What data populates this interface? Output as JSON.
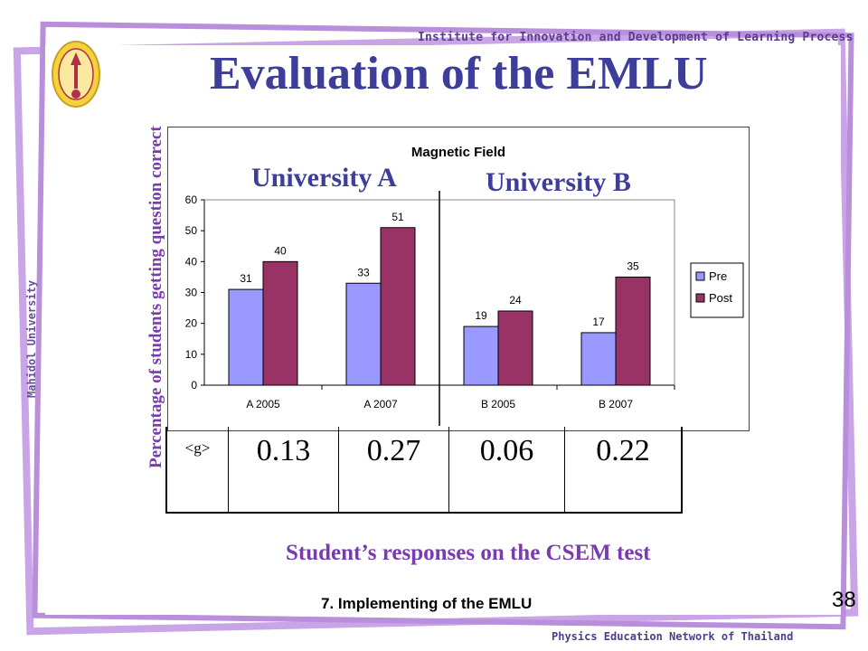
{
  "header": {
    "institute": "Institute for Innovation and Development of Learning Process",
    "title": "Evaluation of the EMLU",
    "side_text": "Mahidol University"
  },
  "annotations": {
    "university_a": "University A",
    "university_b": "University B",
    "y_axis_overlay": "Percentage of students getting question correct"
  },
  "chart_data": {
    "type": "bar",
    "title": "Magnetic Field",
    "categories": [
      "A 2005",
      "A 2007",
      "B 2005",
      "B 2007"
    ],
    "series": [
      {
        "name": "Pre",
        "values": [
          31,
          33,
          19,
          17
        ],
        "color": "#9999ff"
      },
      {
        "name": "Post",
        "values": [
          40,
          51,
          24,
          35
        ],
        "color": "#993366"
      }
    ],
    "ylim": [
      0,
      60
    ],
    "yticks": [
      "0",
      "10",
      "20",
      "30",
      "40",
      "50",
      "60"
    ],
    "legend_position": "right",
    "grid": false
  },
  "gain_table": {
    "label": "<g>",
    "values": [
      "0.13",
      "0.27",
      "0.06",
      "0.22"
    ]
  },
  "caption": "Student’s responses on the CSEM test",
  "footer": {
    "section": "7. Implementing of the EMLU",
    "slide_number": "38",
    "network": "Physics Education Network of Thailand"
  }
}
